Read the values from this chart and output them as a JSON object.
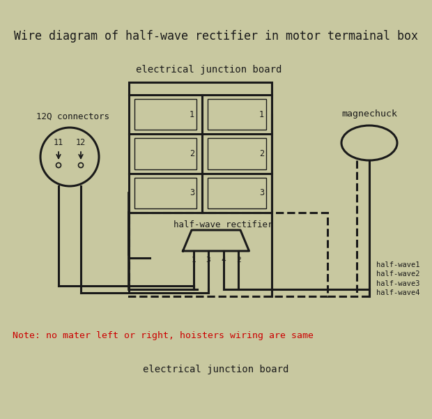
{
  "title": "Wire diagram of half-wave rectifier in motor termainal box",
  "bg_color": "#c8c8a0",
  "text_color": "#1a1a1a",
  "title_fontsize": 12,
  "label_fontsize": 10,
  "note_text": "Note: no mater left or right, hoisters wiring are same",
  "note_color": "#cc0000",
  "bottom_label": "electrical junction board",
  "top_label": "electrical junction board",
  "connector_label": "12Q connectors",
  "magnechuck_label": "magnechuck",
  "rectifier_label": "half-wave rectifier",
  "half_wave_labels": [
    "half-wave1",
    "half-wave2",
    "half-wave3",
    "half-wave4"
  ],
  "terminal_numbers_left": [
    "1",
    "2",
    "3"
  ],
  "terminal_numbers_right": [
    "1",
    "2",
    "3"
  ],
  "rectifier_pins": [
    "1",
    "3",
    "4",
    "2"
  ]
}
